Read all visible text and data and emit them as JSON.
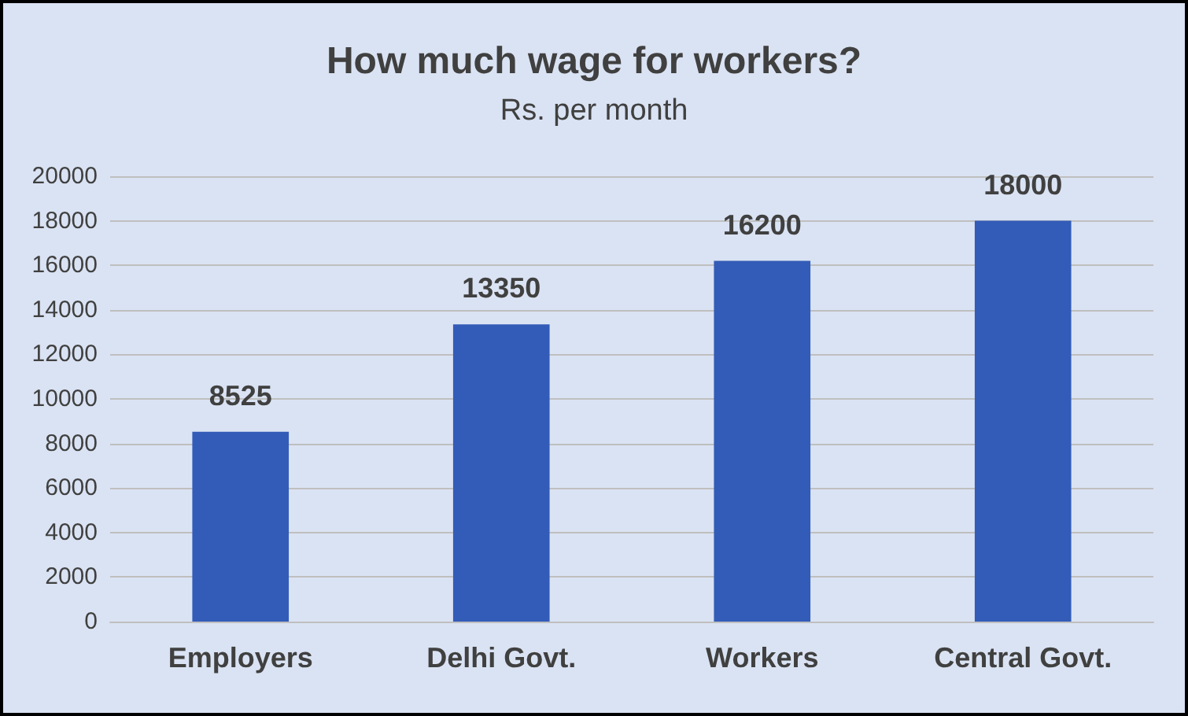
{
  "chart_data": {
    "type": "bar",
    "title": "How much wage for workers?",
    "subtitle": "Rs. per month",
    "categories": [
      "Employers",
      "Delhi Govt.",
      "Workers",
      "Central Govt."
    ],
    "values": [
      8525,
      13350,
      16200,
      18000
    ],
    "color": "#335cb8",
    "ylim": [
      0,
      20000
    ],
    "yticks": [
      0,
      2000,
      4000,
      6000,
      8000,
      10000,
      12000,
      14000,
      16000,
      18000,
      20000
    ],
    "grid": "y",
    "data_labels": true
  }
}
